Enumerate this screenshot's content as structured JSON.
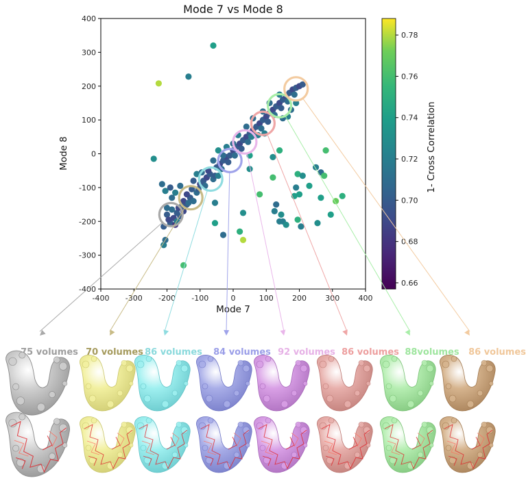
{
  "chart_data": {
    "type": "scatter",
    "title": "Mode 7 vs Mode 8",
    "xlabel": "Mode 7",
    "ylabel": "Mode 8",
    "xlim": [
      -400,
      400
    ],
    "ylim": [
      -400,
      400
    ],
    "xticks": [
      "-400",
      "-300",
      "-200",
      "-100",
      "0",
      "100",
      "200",
      "300",
      "400"
    ],
    "yticks": [
      "-400",
      "-300",
      "-200",
      "-100",
      "0",
      "100",
      "200",
      "300",
      "400"
    ],
    "colorbar": {
      "label": "1- Cross Correlation",
      "range": [
        0.657,
        0.788
      ],
      "ticks": [
        "0.66",
        "0.68",
        "0.70",
        "0.72",
        "0.74",
        "0.76",
        "0.78"
      ],
      "colormap": "viridis"
    },
    "points": [
      [
        -180,
        -190,
        0.69
      ],
      [
        -170,
        -175,
        0.7
      ],
      [
        -160,
        -185,
        0.7
      ],
      [
        -150,
        -170,
        0.69
      ],
      [
        -190,
        -205,
        0.7
      ],
      [
        -175,
        -210,
        0.68
      ],
      [
        -200,
        -180,
        0.7
      ],
      [
        -165,
        -160,
        0.69
      ],
      [
        -140,
        -150,
        0.7
      ],
      [
        -150,
        -140,
        0.69
      ],
      [
        -130,
        -130,
        0.7
      ],
      [
        -120,
        -140,
        0.71
      ],
      [
        -140,
        -120,
        0.69
      ],
      [
        -125,
        -105,
        0.7
      ],
      [
        -110,
        -115,
        0.71
      ],
      [
        -100,
        -90,
        0.69
      ],
      [
        -90,
        -80,
        0.7
      ],
      [
        -80,
        -70,
        0.69
      ],
      [
        -70,
        -60,
        0.7
      ],
      [
        -60,
        -75,
        0.71
      ],
      [
        -75,
        -50,
        0.69
      ],
      [
        -50,
        -40,
        0.7
      ],
      [
        -40,
        -30,
        0.69
      ],
      [
        -30,
        -20,
        0.7
      ],
      [
        -20,
        -10,
        0.69
      ],
      [
        -10,
        -5,
        0.7
      ],
      [
        0,
        10,
        0.69
      ],
      [
        10,
        20,
        0.7
      ],
      [
        20,
        30,
        0.69
      ],
      [
        30,
        40,
        0.7
      ],
      [
        40,
        50,
        0.69
      ],
      [
        50,
        60,
        0.7
      ],
      [
        60,
        70,
        0.69
      ],
      [
        70,
        80,
        0.7
      ],
      [
        80,
        90,
        0.69
      ],
      [
        90,
        100,
        0.7
      ],
      [
        100,
        110,
        0.69
      ],
      [
        110,
        120,
        0.7
      ],
      [
        120,
        130,
        0.69
      ],
      [
        130,
        140,
        0.7
      ],
      [
        140,
        150,
        0.69
      ],
      [
        150,
        160,
        0.7
      ],
      [
        160,
        170,
        0.69
      ],
      [
        170,
        180,
        0.7
      ],
      [
        180,
        190,
        0.69
      ],
      [
        190,
        195,
        0.7
      ],
      [
        200,
        200,
        0.69
      ],
      [
        210,
        205,
        0.7
      ],
      [
        185,
        175,
        0.71
      ],
      [
        165,
        155,
        0.71
      ],
      [
        145,
        135,
        0.7
      ],
      [
        125,
        115,
        0.71
      ],
      [
        105,
        95,
        0.7
      ],
      [
        85,
        75,
        0.71
      ],
      [
        65,
        55,
        0.7
      ],
      [
        45,
        35,
        0.71
      ],
      [
        25,
        15,
        0.7
      ],
      [
        5,
        -5,
        0.71
      ],
      [
        -15,
        -25,
        0.7
      ],
      [
        -35,
        -45,
        0.71
      ],
      [
        -55,
        -65,
        0.7
      ],
      [
        -85,
        -95,
        0.71
      ],
      [
        -105,
        -105,
        0.7
      ],
      [
        -135,
        -145,
        0.71
      ],
      [
        -155,
        -155,
        0.7
      ],
      [
        -185,
        -165,
        0.71
      ],
      [
        -195,
        -195,
        0.69
      ],
      [
        -210,
        -215,
        0.7
      ],
      [
        -170,
        -200,
        0.72
      ],
      [
        -200,
        -160,
        0.71
      ],
      [
        -185,
        -130,
        0.71
      ],
      [
        -205,
        -110,
        0.72
      ],
      [
        -215,
        -90,
        0.71
      ],
      [
        -190,
        -100,
        0.7
      ],
      [
        -175,
        -115,
        0.72
      ],
      [
        -160,
        -95,
        0.71
      ],
      [
        -110,
        -60,
        0.72
      ],
      [
        -95,
        -55,
        0.71
      ],
      [
        -120,
        -80,
        0.7
      ],
      [
        -45,
        -65,
        0.72
      ],
      [
        -30,
        -5,
        0.71
      ],
      [
        -45,
        10,
        0.73
      ],
      [
        -60,
        -20,
        0.71
      ],
      [
        -20,
        20,
        0.72
      ],
      [
        0,
        30,
        0.71
      ],
      [
        15,
        55,
        0.72
      ],
      [
        40,
        80,
        0.71
      ],
      [
        55,
        50,
        0.72
      ],
      [
        60,
        105,
        0.71
      ],
      [
        75,
        55,
        0.72
      ],
      [
        90,
        125,
        0.71
      ],
      [
        95,
        60,
        0.72
      ],
      [
        110,
        150,
        0.71
      ],
      [
        140,
        175,
        0.72
      ],
      [
        150,
        105,
        0.71
      ],
      [
        165,
        110,
        0.72
      ],
      [
        175,
        130,
        0.71
      ],
      [
        190,
        150,
        0.72
      ],
      [
        -60,
        320,
        0.74
      ],
      [
        -135,
        228,
        0.72
      ],
      [
        -225,
        208,
        0.78
      ],
      [
        -240,
        -15,
        0.73
      ],
      [
        30,
        -255,
        0.78
      ],
      [
        -150,
        -330,
        0.76
      ],
      [
        -210,
        -270,
        0.72
      ],
      [
        -205,
        -255,
        0.71
      ],
      [
        -55,
        -205,
        0.74
      ],
      [
        -55,
        -145,
        0.72
      ],
      [
        -30,
        -240,
        0.71
      ],
      [
        20,
        -230,
        0.75
      ],
      [
        30,
        -175,
        0.73
      ],
      [
        50,
        -45,
        0.73
      ],
      [
        50,
        -5,
        0.74
      ],
      [
        140,
        10,
        0.75
      ],
      [
        120,
        -70,
        0.76
      ],
      [
        120,
        -10,
        0.73
      ],
      [
        80,
        -120,
        0.76
      ],
      [
        130,
        -150,
        0.71
      ],
      [
        125,
        -170,
        0.72
      ],
      [
        145,
        -180,
        0.73
      ],
      [
        150,
        -200,
        0.72
      ],
      [
        160,
        -210,
        0.73
      ],
      [
        140,
        -200,
        0.72
      ],
      [
        195,
        -195,
        0.75
      ],
      [
        205,
        -215,
        0.72
      ],
      [
        200,
        -120,
        0.74
      ],
      [
        190,
        -100,
        0.72
      ],
      [
        195,
        -60,
        0.75
      ],
      [
        210,
        -65,
        0.73
      ],
      [
        230,
        -95,
        0.74
      ],
      [
        250,
        -40,
        0.72
      ],
      [
        265,
        -130,
        0.74
      ],
      [
        265,
        -55,
        0.71
      ],
      [
        280,
        10,
        0.76
      ],
      [
        275,
        -65,
        0.76
      ],
      [
        295,
        -180,
        0.74
      ],
      [
        310,
        -140,
        0.77
      ],
      [
        330,
        -125,
        0.75
      ],
      [
        255,
        -205,
        0.73
      ],
      [
        185,
        -125,
        0.74
      ]
    ],
    "clusters": [
      {
        "name": "cluster-1",
        "center": [
          -188,
          -180
        ],
        "color": "#a9a9a9",
        "label": "75 volumes"
      },
      {
        "name": "cluster-2",
        "center": [
          -128,
          -130
        ],
        "color": "#c8bb86",
        "label": "70 volumes"
      },
      {
        "name": "cluster-3",
        "center": [
          -68,
          -75
        ],
        "color": "#8fdce0",
        "label": "86 volumes"
      },
      {
        "name": "cluster-4",
        "center": [
          -10,
          -20
        ],
        "color": "#9fa3ea",
        "label": "84 volumes"
      },
      {
        "name": "cluster-5",
        "center": [
          35,
          35
        ],
        "color": "#e9b6ea",
        "label": "92 volumes"
      },
      {
        "name": "cluster-6",
        "center": [
          90,
          90
        ],
        "color": "#efa6a6",
        "label": "86 volumes"
      },
      {
        "name": "cluster-7",
        "center": [
          140,
          142
        ],
        "color": "#a8eea8",
        "label": "88volumes"
      },
      {
        "name": "cluster-8",
        "center": [
          190,
          192
        ],
        "color": "#f3cba0",
        "label": "86 volumes"
      }
    ]
  },
  "colors": {
    "cluster_label_text": [
      "#9e9e9e",
      "#a59a5c",
      "#8ad9dc",
      "#9a9ee8",
      "#e6b1e6",
      "#ed9f9f",
      "#9ee59e",
      "#f0c79a"
    ],
    "volume_fill": [
      "#cfcfcf",
      "#f2f0a0",
      "#9ff0f0",
      "#a9aee8",
      "#d9a0e6",
      "#e8b0ac",
      "#b6eeb2",
      "#d6b48e"
    ],
    "volume_fill_lo": [
      "#8a8a8a",
      "#c9c56a",
      "#5fc2c6",
      "#6e74c4",
      "#a667b8",
      "#bb7671",
      "#78c074",
      "#a0784f"
    ]
  }
}
